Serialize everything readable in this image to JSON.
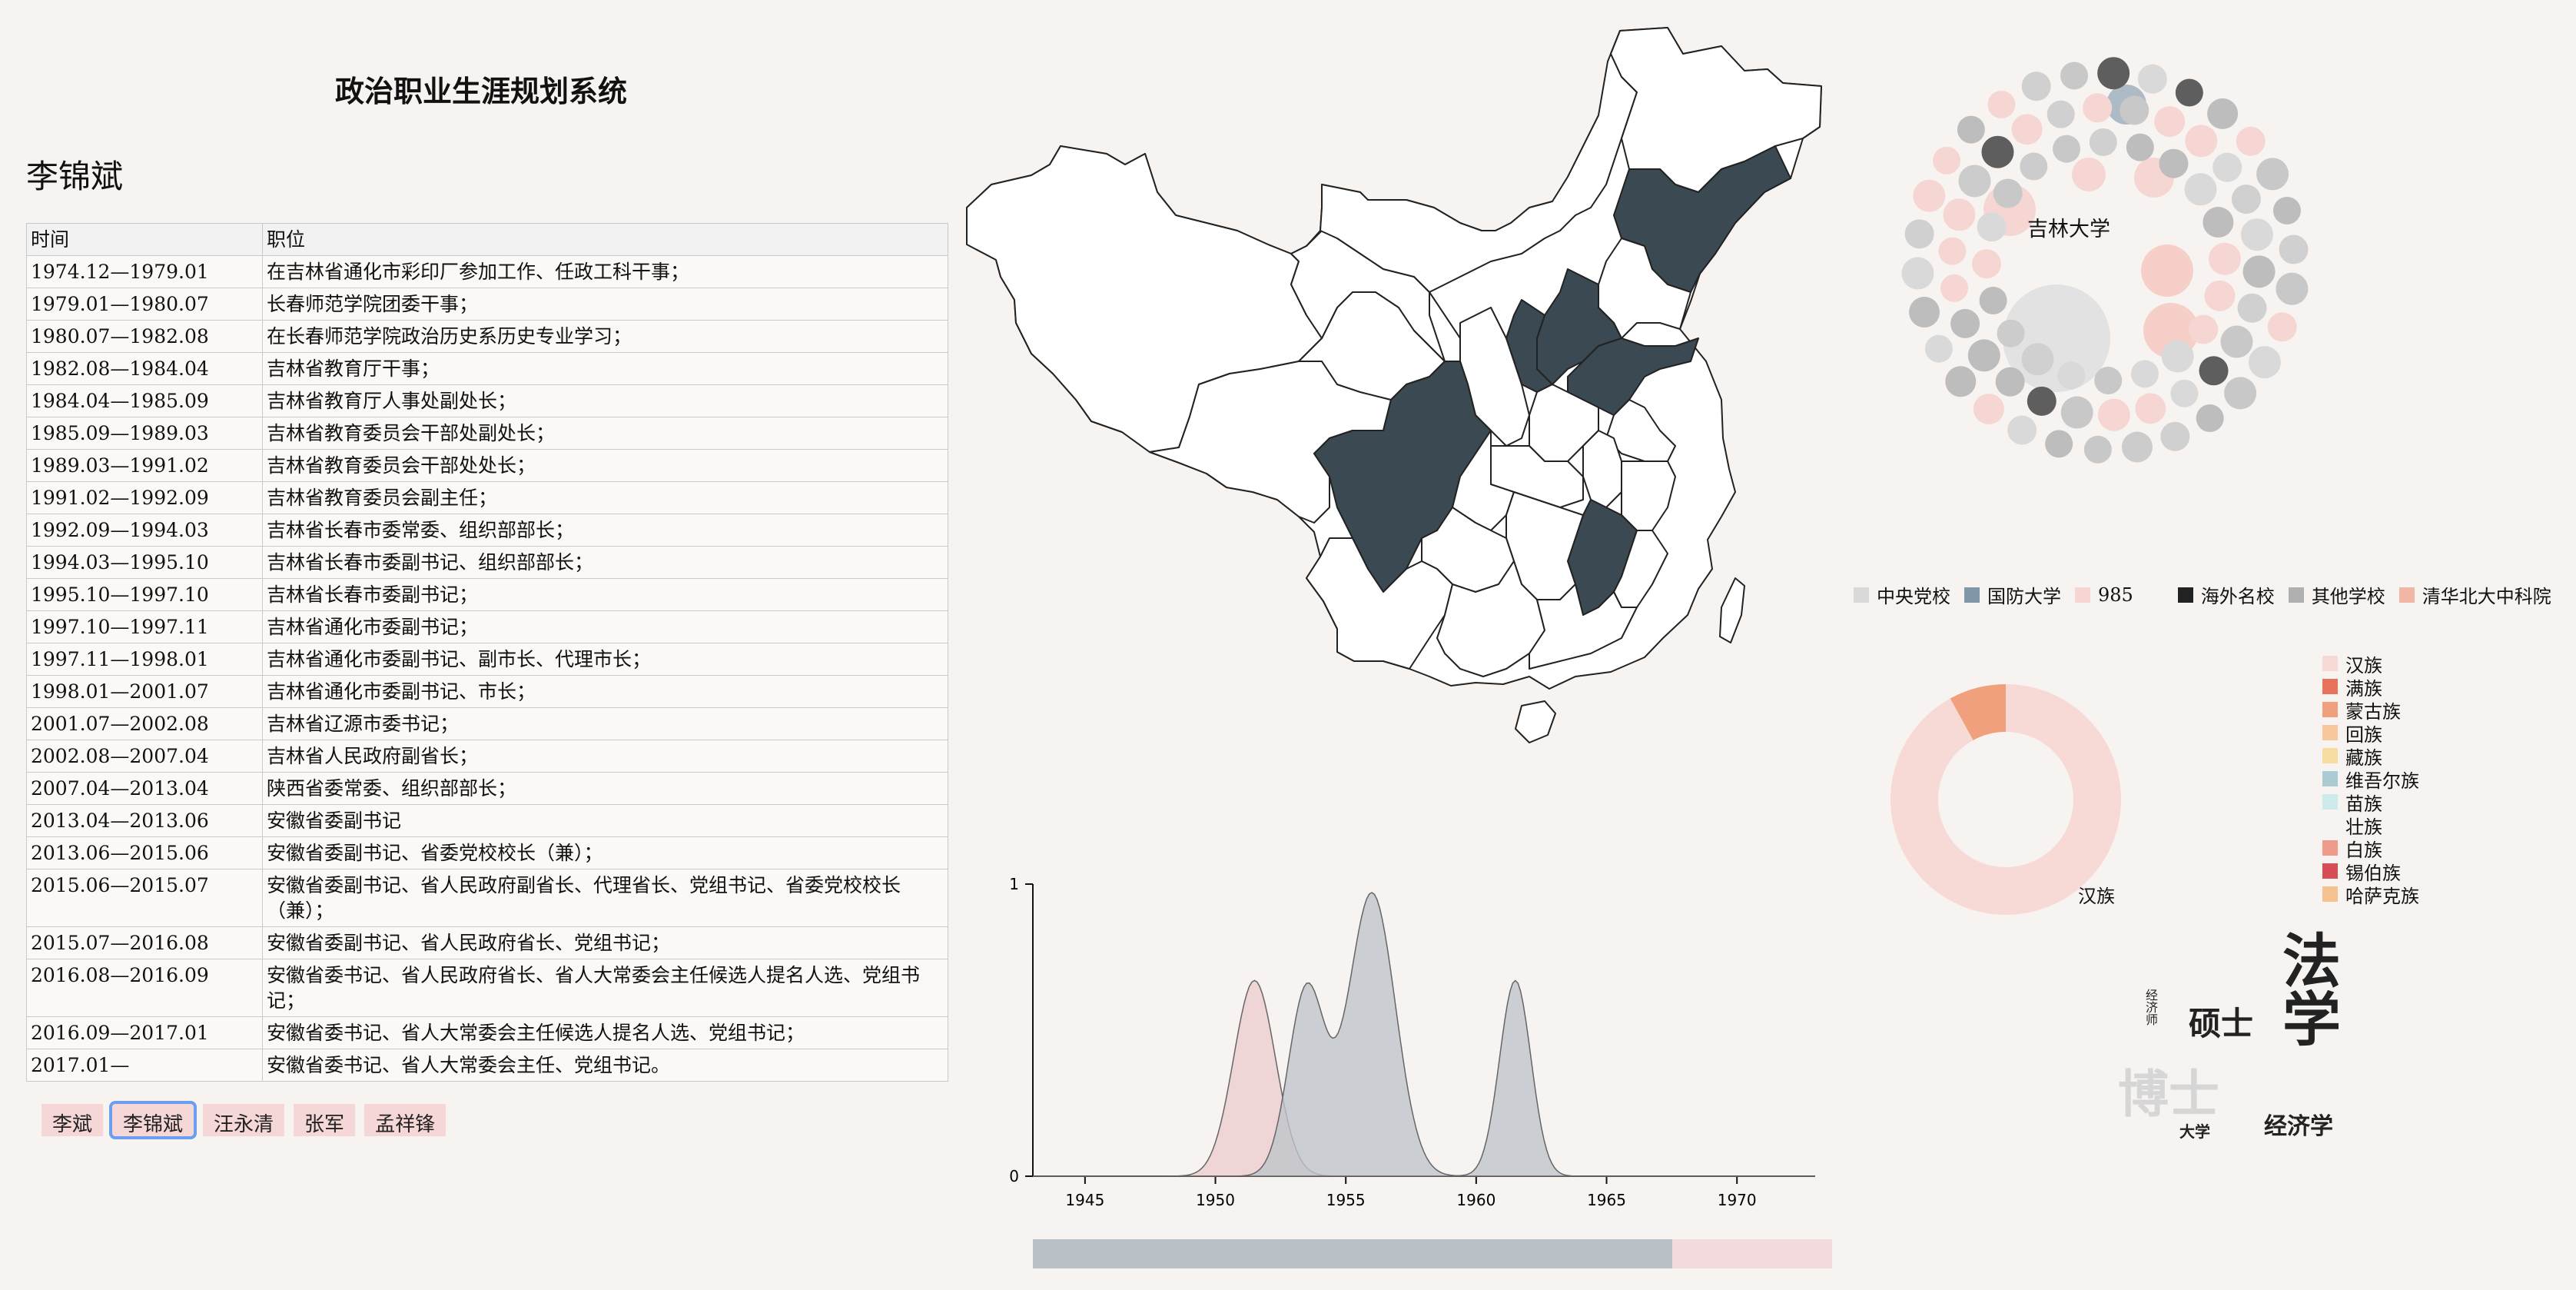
{
  "app": {
    "title": "政治职业生涯规划系统"
  },
  "person": {
    "name": "李锦斌"
  },
  "table": {
    "headers": [
      "时间",
      "职位"
    ],
    "rows": [
      [
        "1974.12—1979.01",
        "在吉林省通化市彩印厂参加工作、任政工科干事；"
      ],
      [
        "1979.01—1980.07",
        "长春师范学院团委干事；"
      ],
      [
        "1980.07—1982.08",
        "在长春师范学院政治历史系历史专业学习；"
      ],
      [
        "1982.08—1984.04",
        "吉林省教育厅干事；"
      ],
      [
        "1984.04—1985.09",
        "吉林省教育厅人事处副处长；"
      ],
      [
        "1985.09—1989.03",
        "吉林省教育委员会干部处副处长；"
      ],
      [
        "1989.03—1991.02",
        "吉林省教育委员会干部处处长；"
      ],
      [
        "1991.02—1992.09",
        "吉林省教育委员会副主任；"
      ],
      [
        "1992.09—1994.03",
        "吉林省长春市委常委、组织部部长；"
      ],
      [
        "1994.03—1995.10",
        "吉林省长春市委副书记、组织部部长；"
      ],
      [
        "1995.10—1997.10",
        "吉林省长春市委副书记；"
      ],
      [
        "1997.10—1997.11",
        "吉林省通化市委副书记；"
      ],
      [
        "1997.11—1998.01",
        "吉林省通化市委副书记、副市长、代理市长；"
      ],
      [
        "1998.01—2001.07",
        "吉林省通化市委副书记、市长；"
      ],
      [
        "2001.07—2002.08",
        "吉林省辽源市委书记；"
      ],
      [
        "2002.08—2007.04",
        "吉林省人民政府副省长；"
      ],
      [
        "2007.04—2013.04",
        "陕西省委常委、组织部部长；"
      ],
      [
        "2013.04—2013.06",
        "安徽省委副书记"
      ],
      [
        "2013.06—2015.06",
        "安徽省委副书记、省委党校校长（兼）；"
      ],
      [
        "2015.06—2015.07",
        "安徽省委副书记、省人民政府副省长、代理省长、党组书记、省委党校校长（兼）；"
      ],
      [
        "2015.07—2016.08",
        "安徽省委副书记、省人民政府省长、党组书记；"
      ],
      [
        "2016.08—2016.09",
        "安徽省委书记、省人民政府省长、省人大常委会主任候选人提名人选、党组书记；"
      ],
      [
        "2016.09—2017.01",
        "安徽省委书记、省人大常委会主任候选人提名人选、党组书记；"
      ],
      [
        "2017.01—",
        "安徽省委书记、省人大常委会主任、党组书记。"
      ]
    ]
  },
  "people_buttons": [
    {
      "label": "李斌",
      "active": false
    },
    {
      "label": "李锦斌",
      "active": true
    },
    {
      "label": "汪永清",
      "active": false
    },
    {
      "label": "张军",
      "active": false
    },
    {
      "label": "孟祥锋",
      "active": false
    }
  ],
  "map": {
    "highlighted_provinces_count": 5,
    "fill_highlight": "#3b4a52",
    "fill_normal": "#ffffff"
  },
  "bubble": {
    "center_label": "吉林大学"
  },
  "school_legend": [
    {
      "label": "中央党校",
      "color": "#d9d9d9"
    },
    {
      "label": "国防大学",
      "color": "#7f97a6"
    },
    {
      "label": "985",
      "color": "#f6d6d3"
    },
    {
      "label": "海外名校",
      "color": "#222222"
    },
    {
      "label": "其他学校",
      "color": "#b0b0b0"
    },
    {
      "label": "清华北大中科院",
      "color": "#f2b6a6"
    }
  ],
  "ethnicity_legend": [
    {
      "label": "汉族",
      "color": "#f7d9d6"
    },
    {
      "label": "满族",
      "color": "#e8735c"
    },
    {
      "label": "蒙古族",
      "color": "#f0a07d"
    },
    {
      "label": "回族",
      "color": "#f6c89c"
    },
    {
      "label": "藏族",
      "color": "#f7dca0"
    },
    {
      "label": "维吾尔族",
      "color": "#a9cbd1"
    },
    {
      "label": "苗族",
      "color": "#cfeaea"
    },
    {
      "label": "壮族",
      "color": "#f7f3f1"
    },
    {
      "label": "白族",
      "color": "#ef9a8a"
    },
    {
      "label": "锡伯族",
      "color": "#d84c57"
    },
    {
      "label": "哈萨克族",
      "color": "#f3c28e"
    }
  ],
  "donut": {
    "label": "汉族",
    "slices": [
      {
        "label": "汉族",
        "share": 0.92,
        "color": "#f7d9d6"
      },
      {
        "label": "蒙古族",
        "share": 0.08,
        "color": "#f0a07d"
      }
    ]
  },
  "word_cloud": [
    {
      "text": "法学",
      "color": "#222222"
    },
    {
      "text": "硕士",
      "color": "#222222"
    },
    {
      "text": "博士",
      "color": "#d6d6d6"
    },
    {
      "text": "经济学",
      "color": "#222222"
    },
    {
      "text": "大学",
      "color": "#222222"
    },
    {
      "text": "经济师",
      "color": "#222222"
    }
  ],
  "chart_data": {
    "type": "area",
    "title": "",
    "xlabel": "",
    "ylabel": "",
    "xlim": [
      1943,
      1973
    ],
    "ylim": [
      0,
      1
    ],
    "x_ticks": [
      1945,
      1950,
      1955,
      1960,
      1965,
      1970
    ],
    "y_ticks": [
      0,
      1
    ],
    "series": [
      {
        "color": "#eccdcf",
        "peaks": [
          {
            "x": 1951.5,
            "y": 0.67,
            "sd": 0.8
          }
        ]
      },
      {
        "color": "#bfc4ca",
        "peaks": [
          {
            "x": 1953.5,
            "y": 0.64,
            "sd": 0.7
          },
          {
            "x": 1956.0,
            "y": 0.97,
            "sd": 0.9
          },
          {
            "x": 1961.5,
            "y": 0.67,
            "sd": 0.6
          }
        ]
      }
    ]
  },
  "slider": {
    "selected_fraction": 0.8
  }
}
